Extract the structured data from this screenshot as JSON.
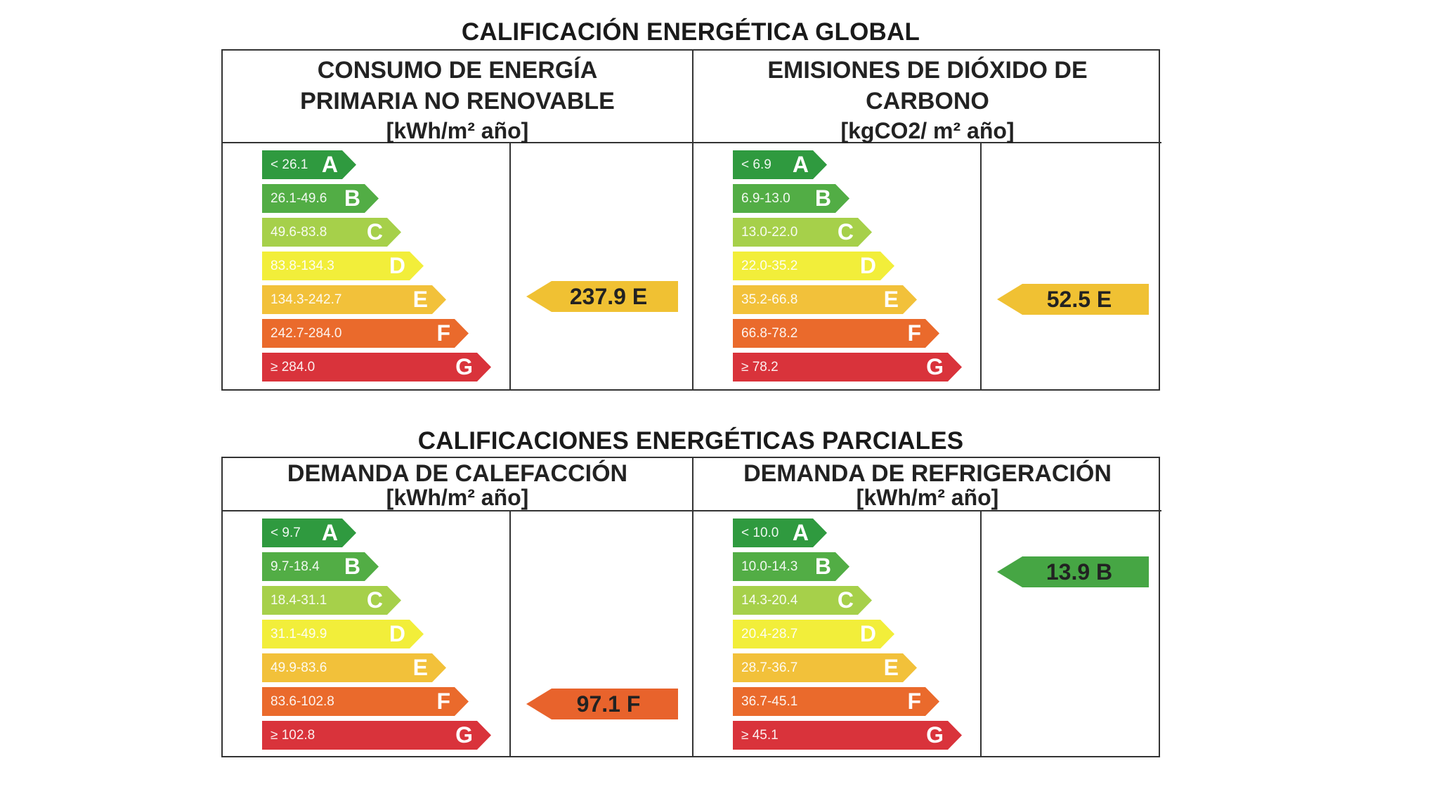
{
  "titles": {
    "global": "CALIFICACIÓN ENERGÉTICA GLOBAL",
    "parcial": "CALIFICACIONES ENERGÉTICAS PARCIALES"
  },
  "blocks": [
    {
      "head_lines": [
        "CONSUMO DE ENERGÍA",
        "PRIMARIA NO RENOVABLE"
      ],
      "unit": "[kWh/m² año]",
      "ranges": [
        "< 26.1",
        "26.1-49.6",
        "49.6-83.8",
        "83.8-134.3",
        "134.3-242.7",
        "242.7-284.0",
        "≥ 284.0"
      ],
      "indicator": {
        "value": "237.9 E",
        "letter": "E",
        "color": "#f0c133"
      }
    },
    {
      "head_lines": [
        "EMISIONES DE DIÓXIDO DE",
        "CARBONO"
      ],
      "unit": "[kgCO2/ m² año]",
      "ranges": [
        "< 6.9",
        "6.9-13.0",
        "13.0-22.0",
        "22.0-35.2",
        "35.2-66.8",
        "66.8-78.2",
        "≥ 78.2"
      ],
      "indicator": {
        "value": "52.5 E",
        "letter": "E",
        "color": "#f0c133"
      }
    },
    {
      "head_lines": [
        "DEMANDA DE CALEFACCIÓN"
      ],
      "unit": "[kWh/m² año]",
      "ranges": [
        "< 9.7",
        "9.7-18.4",
        "18.4-31.1",
        "31.1-49.9",
        "49.9-83.6",
        "83.6-102.8",
        "≥ 102.8"
      ],
      "indicator": {
        "value": "97.1 F",
        "letter": "F",
        "color": "#e8632c"
      }
    },
    {
      "head_lines": [
        "DEMANDA DE REFRIGERACIÓN"
      ],
      "unit": "[kWh/m² año]",
      "ranges": [
        "< 10.0",
        "10.0-14.3",
        "14.3-20.4",
        "20.4-28.7",
        "28.7-36.7",
        "36.7-45.1",
        "≥ 45.1"
      ],
      "indicator": {
        "value": "13.9 B",
        "letter": "B",
        "color": "#46a644"
      }
    }
  ],
  "letters": [
    "A",
    "B",
    "C",
    "D",
    "E",
    "F",
    "G"
  ],
  "scale_colors": [
    "#2f9a3f",
    "#52ad45",
    "#a6d04a",
    "#f2ee3a",
    "#f2c13a",
    "#ea6a2c",
    "#d9333b"
  ]
}
